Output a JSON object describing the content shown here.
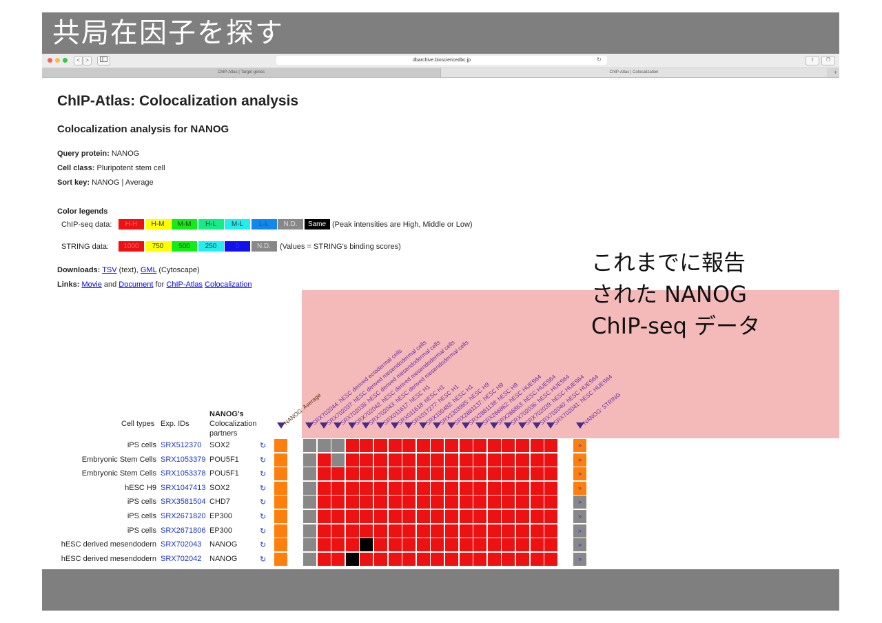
{
  "slide": {
    "title": "共局在因子を探す"
  },
  "browser": {
    "url": "dbarchive.biosciencedbc.jp",
    "tabs": [
      "ChIP-Atlas | Target genes",
      "ChIP-Atlas | Colocalization"
    ],
    "plus": "+",
    "back": "<",
    "forward": ">"
  },
  "page": {
    "title": "ChIP-Atlas: Colocalization analysis",
    "subtitle": "Colocalization analysis for NANOG",
    "query_label": "Query protein:",
    "query_value": "NANOG",
    "cell_label": "Cell class:",
    "cell_value": "Pluripotent stem cell",
    "sort_label": "Sort key:",
    "sort_value": "NANOG | Average",
    "legends_title": "Color legends",
    "chipseq_label": "ChIP-seq data:",
    "chipseq_swatches": [
      {
        "label": "H-H",
        "bg": "#ee1111",
        "fg": "#ff6666"
      },
      {
        "label": "H-M",
        "bg": "#ffff00",
        "fg": "#333333"
      },
      {
        "label": "M-M",
        "bg": "#11ee11",
        "fg": "#333333"
      },
      {
        "label": "H-L",
        "bg": "#11ee88",
        "fg": "#333333"
      },
      {
        "label": "M-L",
        "bg": "#22eeee",
        "fg": "#333333"
      },
      {
        "label": "L-L",
        "bg": "#1188ee",
        "fg": "#115599"
      },
      {
        "label": "N.D.",
        "bg": "#888888",
        "fg": "#dddddd"
      },
      {
        "label": "Same",
        "bg": "#000000",
        "fg": "#ffffff"
      }
    ],
    "chipseq_note": "(Peak intensities are High, Middle or Low)",
    "string_label": "STRING data:",
    "string_swatches": [
      {
        "label": "1000",
        "bg": "#ee1111",
        "fg": "#ff6666"
      },
      {
        "label": "750",
        "bg": "#ffff00",
        "fg": "#333333"
      },
      {
        "label": "500",
        "bg": "#11ee11",
        "fg": "#333333"
      },
      {
        "label": "250",
        "bg": "#22eeee",
        "fg": "#333333"
      },
      {
        "label": "0",
        "bg": "#1111ee",
        "fg": "#3333ff"
      },
      {
        "label": "N.D.",
        "bg": "#888888",
        "fg": "#dddddd"
      }
    ],
    "string_note": "(Values = STRING's binding scores)",
    "downloads_label": "Downloads:",
    "downloads_tsv": "TSV",
    "downloads_tsv_note": "(text),",
    "downloads_gml": "GML",
    "downloads_gml_note": "(Cytoscape)",
    "links_label": "Links:",
    "links_movie": "Movie",
    "links_and": "and",
    "links_document": "Document",
    "links_for": "for",
    "links_chipatlas": "ChIP-Atlas",
    "links_coloc": "Colocalization"
  },
  "callout": {
    "lines": [
      "これまでに報告",
      "された NANOG",
      "ChIP-seq データ"
    ]
  },
  "table": {
    "headers": {
      "cell_types": "Cell types",
      "exp_ids": "Exp. IDs",
      "partners_1": "NANOG's",
      "partners_2": "Colocalization",
      "partners_3": "partners"
    },
    "average_header": "NANOG: Average",
    "string_header": "NANOG: STRING",
    "columns": [
      "SRX702044: hESC derived ectodermal cells",
      "SRX702037: hESC derived mesendodermal cells",
      "SRX702038: hESC derived mesendodermal cells",
      "SRX702042: hESC derived mesendodermal cells",
      "SRX702043: hESC derived mesendodermal cells",
      "SRX011617: hESC H1",
      "SRX011618: hESC H1",
      "SRX017277: hESC H1",
      "SRX100482: hESC H1",
      "SRX1303985: hESC H9",
      "SRX2881137: hESC H9",
      "SRX2881138: hESC H9",
      "SRX266862: hESC HUES64",
      "SRX266863: hESC HUES64",
      "SRX702036: hESC HUES64",
      "SRX702039: hESC HUES64",
      "SRX702040: hESC HUES64",
      "SRX702041: hESC HUES64"
    ],
    "rows": [
      {
        "cell": "iPS cells",
        "exp": "SRX512370",
        "partner": "SOX2",
        "cells": "GGGRRRRRRRRRRRRRRR",
        "string": "O"
      },
      {
        "cell": "Embryonic Stem Cells",
        "exp": "SRX1053379",
        "partner": "POU5F1",
        "cells": "GRGRRRRRRRRRRRRRRR",
        "string": "O"
      },
      {
        "cell": "Embryonic Stem Cells",
        "exp": "SRX1053378",
        "partner": "POU5F1",
        "cells": "GRRRRRRRRRRRRRRRRR",
        "string": "O"
      },
      {
        "cell": "hESC H9",
        "exp": "SRX1047413",
        "partner": "SOX2",
        "cells": "GRRRRRRRRRRRRRRRRR",
        "string": "O"
      },
      {
        "cell": "iPS cells",
        "exp": "SRX3581504",
        "partner": "CHD7",
        "cells": "GRRRRRRRRRRRRRRRRR",
        "string": "G"
      },
      {
        "cell": "iPS cells",
        "exp": "SRX2671820",
        "partner": "EP300",
        "cells": "GRRRRRRRRRRRRRRRRR",
        "string": "G"
      },
      {
        "cell": "iPS cells",
        "exp": "SRX2671806",
        "partner": "EP300",
        "cells": "GRRRRRRRRRRRRRRRRR",
        "string": "G"
      },
      {
        "cell": "hESC derived mesendodern",
        "exp": "SRX702043",
        "partner": "NANOG",
        "cells": "GRRRBRRRRRRRRRRRRR",
        "string": "G"
      },
      {
        "cell": "hESC derived mesendodern",
        "exp": "SRX702042",
        "partner": "NANOG",
        "cells": "GRRBRRRRRRRRRRRRRR",
        "string": "G"
      }
    ],
    "refresh_symbol": "↻",
    "more_symbol": "»",
    "colors": {
      "R": "#ee1111",
      "G": "#888888",
      "B": "#000000",
      "O": "#ff7f0e",
      "avg": "#ff7f0e"
    }
  }
}
